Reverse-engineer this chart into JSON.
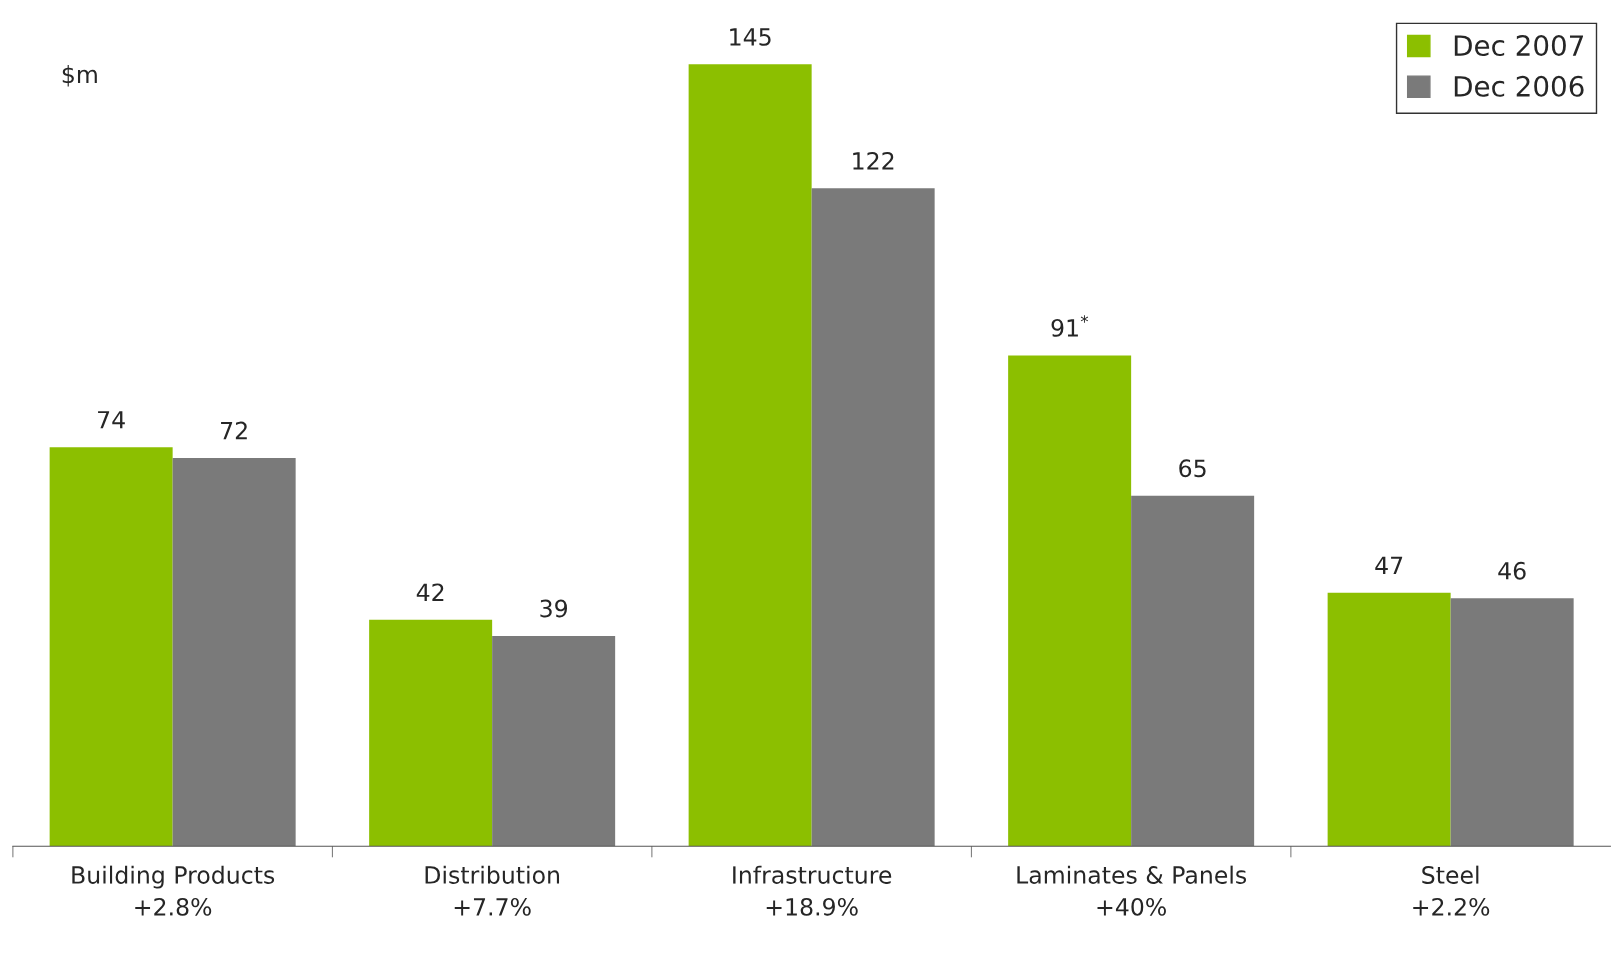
{
  "chart_data": {
    "type": "bar",
    "ylabel": "$m",
    "categories": [
      "Building Products\n+2.8%",
      "Distribution\n+7.7%",
      "Infrastructure\n+18.9%",
      "Laminates & Panels\n+40%",
      "Steel\n+2.2%"
    ],
    "series": [
      {
        "name": "Dec 2007",
        "color": "#8cbf00",
        "values": [
          74,
          42,
          145,
          91,
          47
        ],
        "value_labels": [
          "74",
          "42",
          "145",
          "91$^{*}$",
          "47"
        ]
      },
      {
        "name": "Dec 2006",
        "color": "#7a7a7a",
        "values": [
          72,
          39,
          122,
          65,
          46
        ],
        "value_labels": [
          "72",
          "39",
          "122",
          "65",
          "46"
        ]
      }
    ],
    "legend": "top right",
    "grid": false
  }
}
